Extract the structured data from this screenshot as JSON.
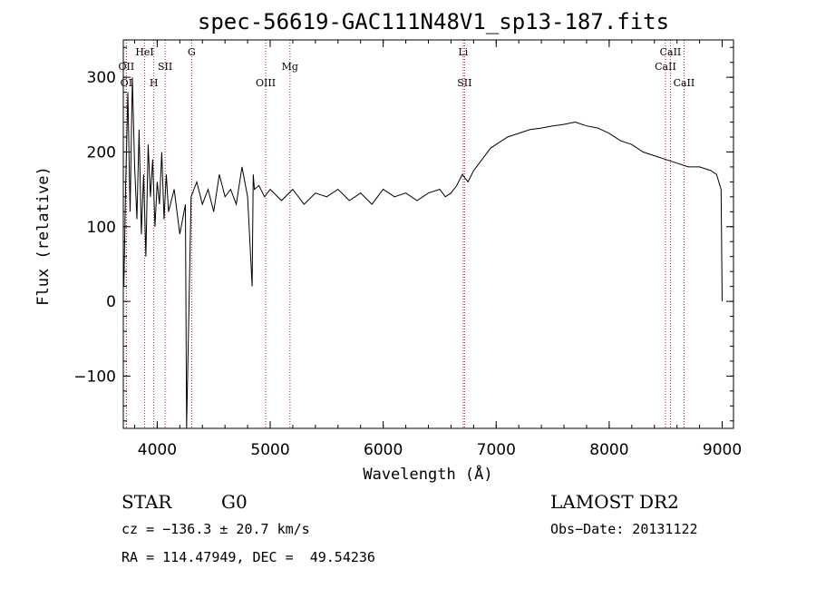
{
  "chart_data": {
    "type": "line",
    "title": "spec-56619-GAC111N48V1_sp13-187.fits",
    "xlabel": "Wavelength (Å)",
    "ylabel": "Flux (relative)",
    "xlim": [
      3700,
      9100
    ],
    "ylim": [
      -170,
      350
    ],
    "xticks": [
      4000,
      5000,
      6000,
      7000,
      8000,
      9000
    ],
    "yticks": [
      -100,
      0,
      100,
      200,
      300
    ],
    "grid": false,
    "series": [
      {
        "color": "#000000",
        "x": [
          3705,
          3720,
          3740,
          3760,
          3780,
          3800,
          3820,
          3840,
          3860,
          3880,
          3900,
          3920,
          3940,
          3960,
          3980,
          4000,
          4020,
          4040,
          4060,
          4080,
          4100,
          4150,
          4200,
          4250,
          4260,
          4300,
          4350,
          4400,
          4450,
          4500,
          4550,
          4600,
          4650,
          4700,
          4750,
          4800,
          4840,
          4850,
          4860,
          4900,
          4950,
          5000,
          5100,
          5200,
          5300,
          5400,
          5500,
          5600,
          5700,
          5800,
          5900,
          6000,
          6100,
          6200,
          6300,
          6400,
          6500,
          6550,
          6600,
          6650,
          6700,
          6750,
          6800,
          6850,
          6900,
          6950,
          7000,
          7100,
          7200,
          7300,
          7400,
          7500,
          7600,
          7700,
          7800,
          7900,
          8000,
          8100,
          8200,
          8300,
          8400,
          8500,
          8600,
          8700,
          8800,
          8900,
          8950,
          8990,
          9000
        ],
        "y": [
          20,
          150,
          280,
          120,
          300,
          180,
          110,
          230,
          90,
          170,
          60,
          210,
          140,
          190,
          100,
          160,
          130,
          200,
          110,
          170,
          120,
          150,
          90,
          130,
          -170,
          140,
          160,
          130,
          150,
          120,
          170,
          140,
          150,
          130,
          180,
          140,
          20,
          170,
          150,
          155,
          140,
          150,
          135,
          150,
          130,
          145,
          140,
          150,
          135,
          145,
          130,
          150,
          140,
          145,
          135,
          145,
          150,
          140,
          145,
          155,
          170,
          160,
          175,
          185,
          195,
          205,
          210,
          220,
          225,
          230,
          232,
          235,
          237,
          240,
          235,
          232,
          225,
          215,
          210,
          200,
          195,
          190,
          185,
          180,
          180,
          175,
          170,
          150,
          0
        ]
      }
    ],
    "line_markers": [
      {
        "label": "OII",
        "wavelength": 3727,
        "tier": 2
      },
      {
        "label": "OI",
        "wavelength": 3727,
        "tier": 3
      },
      {
        "label": "HeI",
        "wavelength": 3889,
        "tier": 1
      },
      {
        "label": "H",
        "wavelength": 3970,
        "tier": 3
      },
      {
        "label": "SII",
        "wavelength": 4070,
        "tier": 2
      },
      {
        "label": "G",
        "wavelength": 4305,
        "tier": 1
      },
      {
        "label": "OIII",
        "wavelength": 4960,
        "tier": 3
      },
      {
        "label": "Mg",
        "wavelength": 5175,
        "tier": 2
      },
      {
        "label": "Li",
        "wavelength": 6708,
        "tier": 1
      },
      {
        "label": "SII",
        "wavelength": 6720,
        "tier": 3
      },
      {
        "label": "CaII",
        "wavelength": 8498,
        "tier": 2
      },
      {
        "label": "CaII",
        "wavelength": 8542,
        "tier": 1
      },
      {
        "label": "CaII",
        "wavelength": 8662,
        "tier": 3
      }
    ]
  },
  "info": {
    "class": "STAR",
    "subclass": "G0",
    "survey": "LAMOST DR2",
    "cz": "cz = −136.3 ± 20.7 km/s",
    "obs_date": "Obs−Date: 20131122",
    "radec": "RA = 114.47949, DEC =  49.54236"
  }
}
